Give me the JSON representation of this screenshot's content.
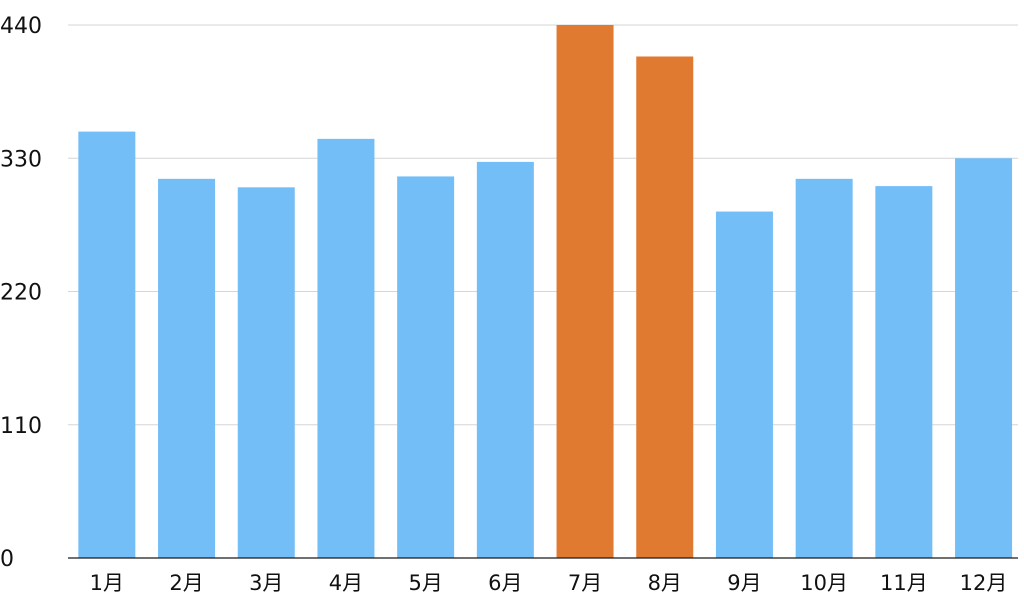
{
  "chart_data": {
    "type": "bar",
    "title": "",
    "xlabel": "",
    "ylabel": "",
    "categories": [
      "1月",
      "2月",
      "3月",
      "4月",
      "5月",
      "6月",
      "7月",
      "8月",
      "9月",
      "10月",
      "11月",
      "12月"
    ],
    "values": [
      352,
      313,
      306,
      346,
      315,
      327,
      440,
      414,
      286,
      313,
      307,
      330
    ],
    "highlight": [
      false,
      false,
      false,
      false,
      false,
      false,
      true,
      true,
      false,
      false,
      false,
      false
    ],
    "ylim": [
      0,
      440
    ],
    "yticks": [
      0,
      110,
      220,
      330,
      440
    ],
    "grid": true,
    "legend": "none",
    "colors": {
      "default_bar": "#74bef8",
      "highlight_bar": "#e07a31",
      "grid": "#d6d6d6",
      "axis": "#1a1a1a"
    }
  }
}
